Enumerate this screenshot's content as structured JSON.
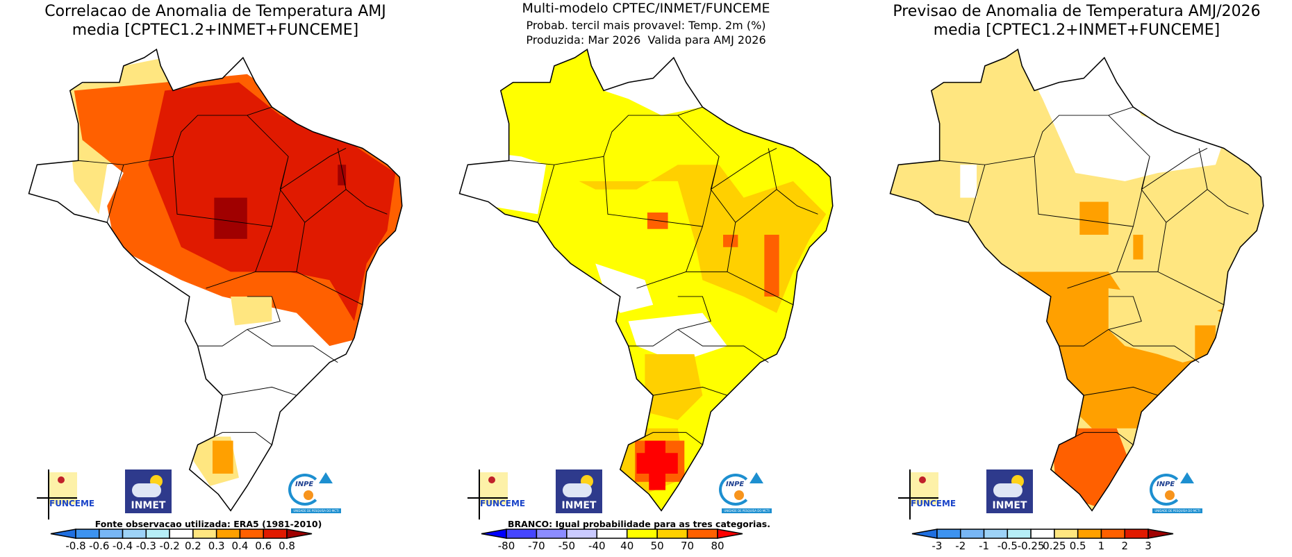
{
  "panels": [
    {
      "title_lines": [
        "Correlacao de Anomalia de Temperatura AMJ",
        "media [CPTEC1.2+INMET+FUNCEME]"
      ],
      "caption": "Fonte observacao utilizada: ERA5 (1981-2010)",
      "colorbar": {
        "colors": [
          "#1f6fe0",
          "#3d93f0",
          "#78b6f5",
          "#9dd2f7",
          "#b6eef7",
          "#ffffff",
          "#ffe680",
          "#ffa000",
          "#ff6000",
          "#e01a00",
          "#a00000"
        ],
        "labels": [
          "-0.8",
          "-0.6",
          "-0.4",
          "-0.3",
          "-0.2",
          "0.2",
          "0.3",
          "0.4",
          "0.6",
          "0.8"
        ]
      }
    },
    {
      "title_lines": [
        "Multi-modelo CPTEC/INMET/FUNCEME",
        "Probab. tercil mais provavel: Temp. 2m (%)",
        "Produzida: Mar 2026  Valida para AMJ 2026"
      ],
      "caption": "BRANCO: Igual probabilidade para as tres categorias.",
      "colorbar": {
        "colors": [
          "#0000ff",
          "#4646ff",
          "#8c8cff",
          "#cacaff",
          "#ffffff",
          "#ffff00",
          "#ffd000",
          "#ff6000",
          "#ff0000"
        ],
        "labels": [
          "-80",
          "-70",
          "-50",
          "-40",
          "40",
          "50",
          "70",
          "80"
        ]
      }
    },
    {
      "title_lines": [
        "Previsao de Anomalia de Temperatura AMJ/2026",
        "media [CPTEC1.2+INMET+FUNCEME]"
      ],
      "caption": "",
      "colorbar": {
        "colors": [
          "#1f6fe0",
          "#3d93f0",
          "#78b6f5",
          "#9dd2f7",
          "#b6eef7",
          "#ffffff",
          "#ffe680",
          "#ffa000",
          "#ff6000",
          "#e01a00",
          "#a00000"
        ],
        "labels": [
          "-3",
          "-2",
          "-1",
          "-0.5",
          "-0.25",
          "0.25",
          "0.5",
          "1",
          "2",
          "3"
        ]
      }
    }
  ],
  "logos": {
    "funceme": "FUNCEME",
    "inmet": "INMET",
    "inpe": "INPE",
    "inpe_band": "UNIDADE DE PESQUISA DO MCTI"
  }
}
